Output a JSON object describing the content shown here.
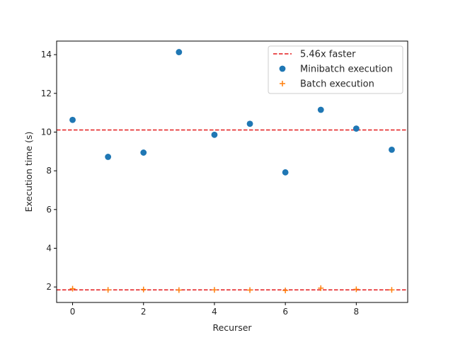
{
  "chart_data": {
    "type": "scatter",
    "title": "",
    "xlabel": "Recurser",
    "ylabel": "Execution time (s)",
    "xlim": [
      -0.45,
      9.45
    ],
    "ylim": [
      1.2,
      14.7
    ],
    "x_ticks": [
      0,
      2,
      4,
      6,
      8
    ],
    "y_ticks": [
      2,
      4,
      6,
      8,
      10,
      12,
      14
    ],
    "grid": false,
    "legend_position": "top-right",
    "x": [
      0,
      1,
      2,
      3,
      4,
      5,
      6,
      7,
      8,
      9
    ],
    "series": [
      {
        "name": "Minibatch execution",
        "marker": "circle",
        "color": "#1f77b4",
        "values": [
          10.63,
          8.72,
          8.94,
          14.13,
          9.86,
          10.43,
          7.92,
          11.15,
          10.18,
          9.09
        ]
      },
      {
        "name": "Batch execution",
        "marker": "plus",
        "color": "#ff7f0e",
        "values": [
          1.91,
          1.85,
          1.87,
          1.84,
          1.85,
          1.84,
          1.82,
          1.94,
          1.88,
          1.85
        ]
      }
    ],
    "reference_lines": [
      {
        "y": 10.11,
        "color": "#e31a1c",
        "style": "dashed",
        "label": "5.46x faster"
      },
      {
        "y": 1.85,
        "color": "#e31a1c",
        "style": "dashed",
        "label": ""
      }
    ]
  }
}
